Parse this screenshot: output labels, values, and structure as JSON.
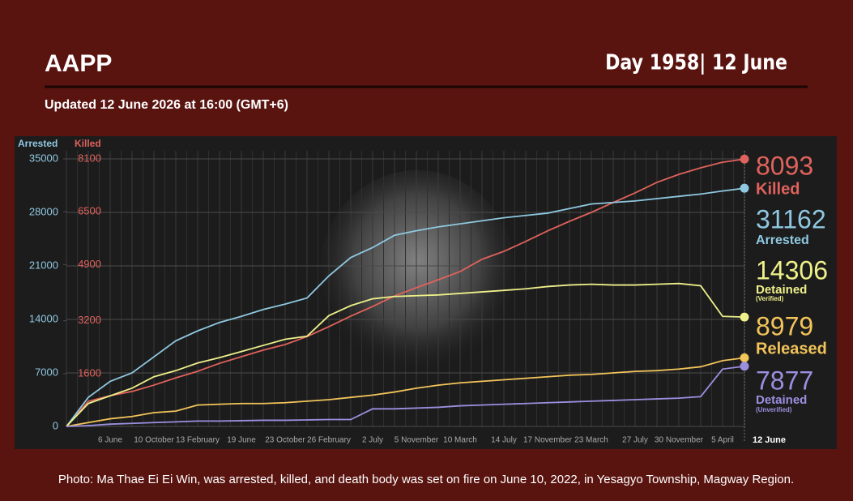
{
  "header": {
    "title": "AAPP",
    "day": "Day 1958| 12 June",
    "subtitle": "Updated 12 June 2026 at 16:00 (GMT+6)"
  },
  "chart_data": {
    "type": "line",
    "y_label": "Arrested",
    "y2_label": "Killed",
    "categories": [
      null,
      null,
      "6 June",
      null,
      "10 October",
      null,
      "13 February",
      null,
      "19 June",
      null,
      "23 October",
      null,
      "26 February",
      null,
      "2 July",
      null,
      "5 November",
      null,
      "10 March",
      null,
      "14 July",
      null,
      "17 November",
      null,
      "23 March",
      null,
      "27 July",
      null,
      "30 November",
      null,
      "5 April",
      "12 June"
    ],
    "ylim": [
      0,
      35000
    ],
    "yticks": [
      0,
      7000,
      14000,
      21000,
      28000,
      35000
    ],
    "y2lim": [
      0,
      8100
    ],
    "y2ticks": [
      1600,
      3200,
      4900,
      6500,
      8100
    ],
    "grid": true,
    "series": [
      {
        "name": "Killed",
        "color": "#e0625c",
        "axis": "y2",
        "values": [
          0,
          760,
          930,
          1060,
          1250,
          1470,
          1670,
          1910,
          2110,
          2310,
          2480,
          2720,
          3020,
          3340,
          3630,
          3950,
          4200,
          4440,
          4690,
          5060,
          5300,
          5600,
          5920,
          6210,
          6480,
          6780,
          7070,
          7390,
          7630,
          7830,
          8000,
          8093
        ]
      },
      {
        "name": "Arrested",
        "color": "#8fc8e0",
        "values": [
          0,
          3800,
          5900,
          7000,
          9100,
          11200,
          12500,
          13600,
          14400,
          15300,
          16000,
          16800,
          19700,
          22100,
          23400,
          25000,
          25600,
          26100,
          26500,
          26900,
          27300,
          27600,
          27900,
          28500,
          29100,
          29300,
          29500,
          29800,
          30100,
          30400,
          30800,
          31162
        ]
      },
      {
        "name": "Detained",
        "note": "(Verified)",
        "color": "#eef08a",
        "values": [
          0,
          3000,
          4000,
          5000,
          6500,
          7300,
          8300,
          9000,
          9800,
          10600,
          11400,
          11800,
          14500,
          15800,
          16700,
          17000,
          17100,
          17200,
          17400,
          17600,
          17800,
          18000,
          18300,
          18500,
          18600,
          18500,
          18500,
          18600,
          18700,
          18400,
          14400,
          14306
        ]
      },
      {
        "name": "Released",
        "color": "#f2c45a",
        "values": [
          0,
          500,
          1000,
          1300,
          1800,
          2000,
          2800,
          2900,
          3000,
          3000,
          3100,
          3300,
          3500,
          3800,
          4100,
          4500,
          5000,
          5400,
          5700,
          5900,
          6100,
          6300,
          6500,
          6700,
          6800,
          7000,
          7200,
          7300,
          7500,
          7800,
          8600,
          8979
        ]
      },
      {
        "name": "Detained",
        "note": "(Unverified)",
        "color": "#9b8fe0",
        "values": [
          0,
          100,
          300,
          400,
          500,
          600,
          700,
          700,
          750,
          800,
          800,
          850,
          900,
          900,
          2300,
          2300,
          2400,
          2500,
          2700,
          2800,
          2900,
          3000,
          3100,
          3200,
          3300,
          3400,
          3500,
          3600,
          3700,
          3900,
          7500,
          7877
        ]
      }
    ]
  },
  "caption": "Photo: Ma Thae Ei Ei Win, was arrested, killed, and death body was set on fire on June 10, 2022, in Yesagyo Township, Magway Region."
}
